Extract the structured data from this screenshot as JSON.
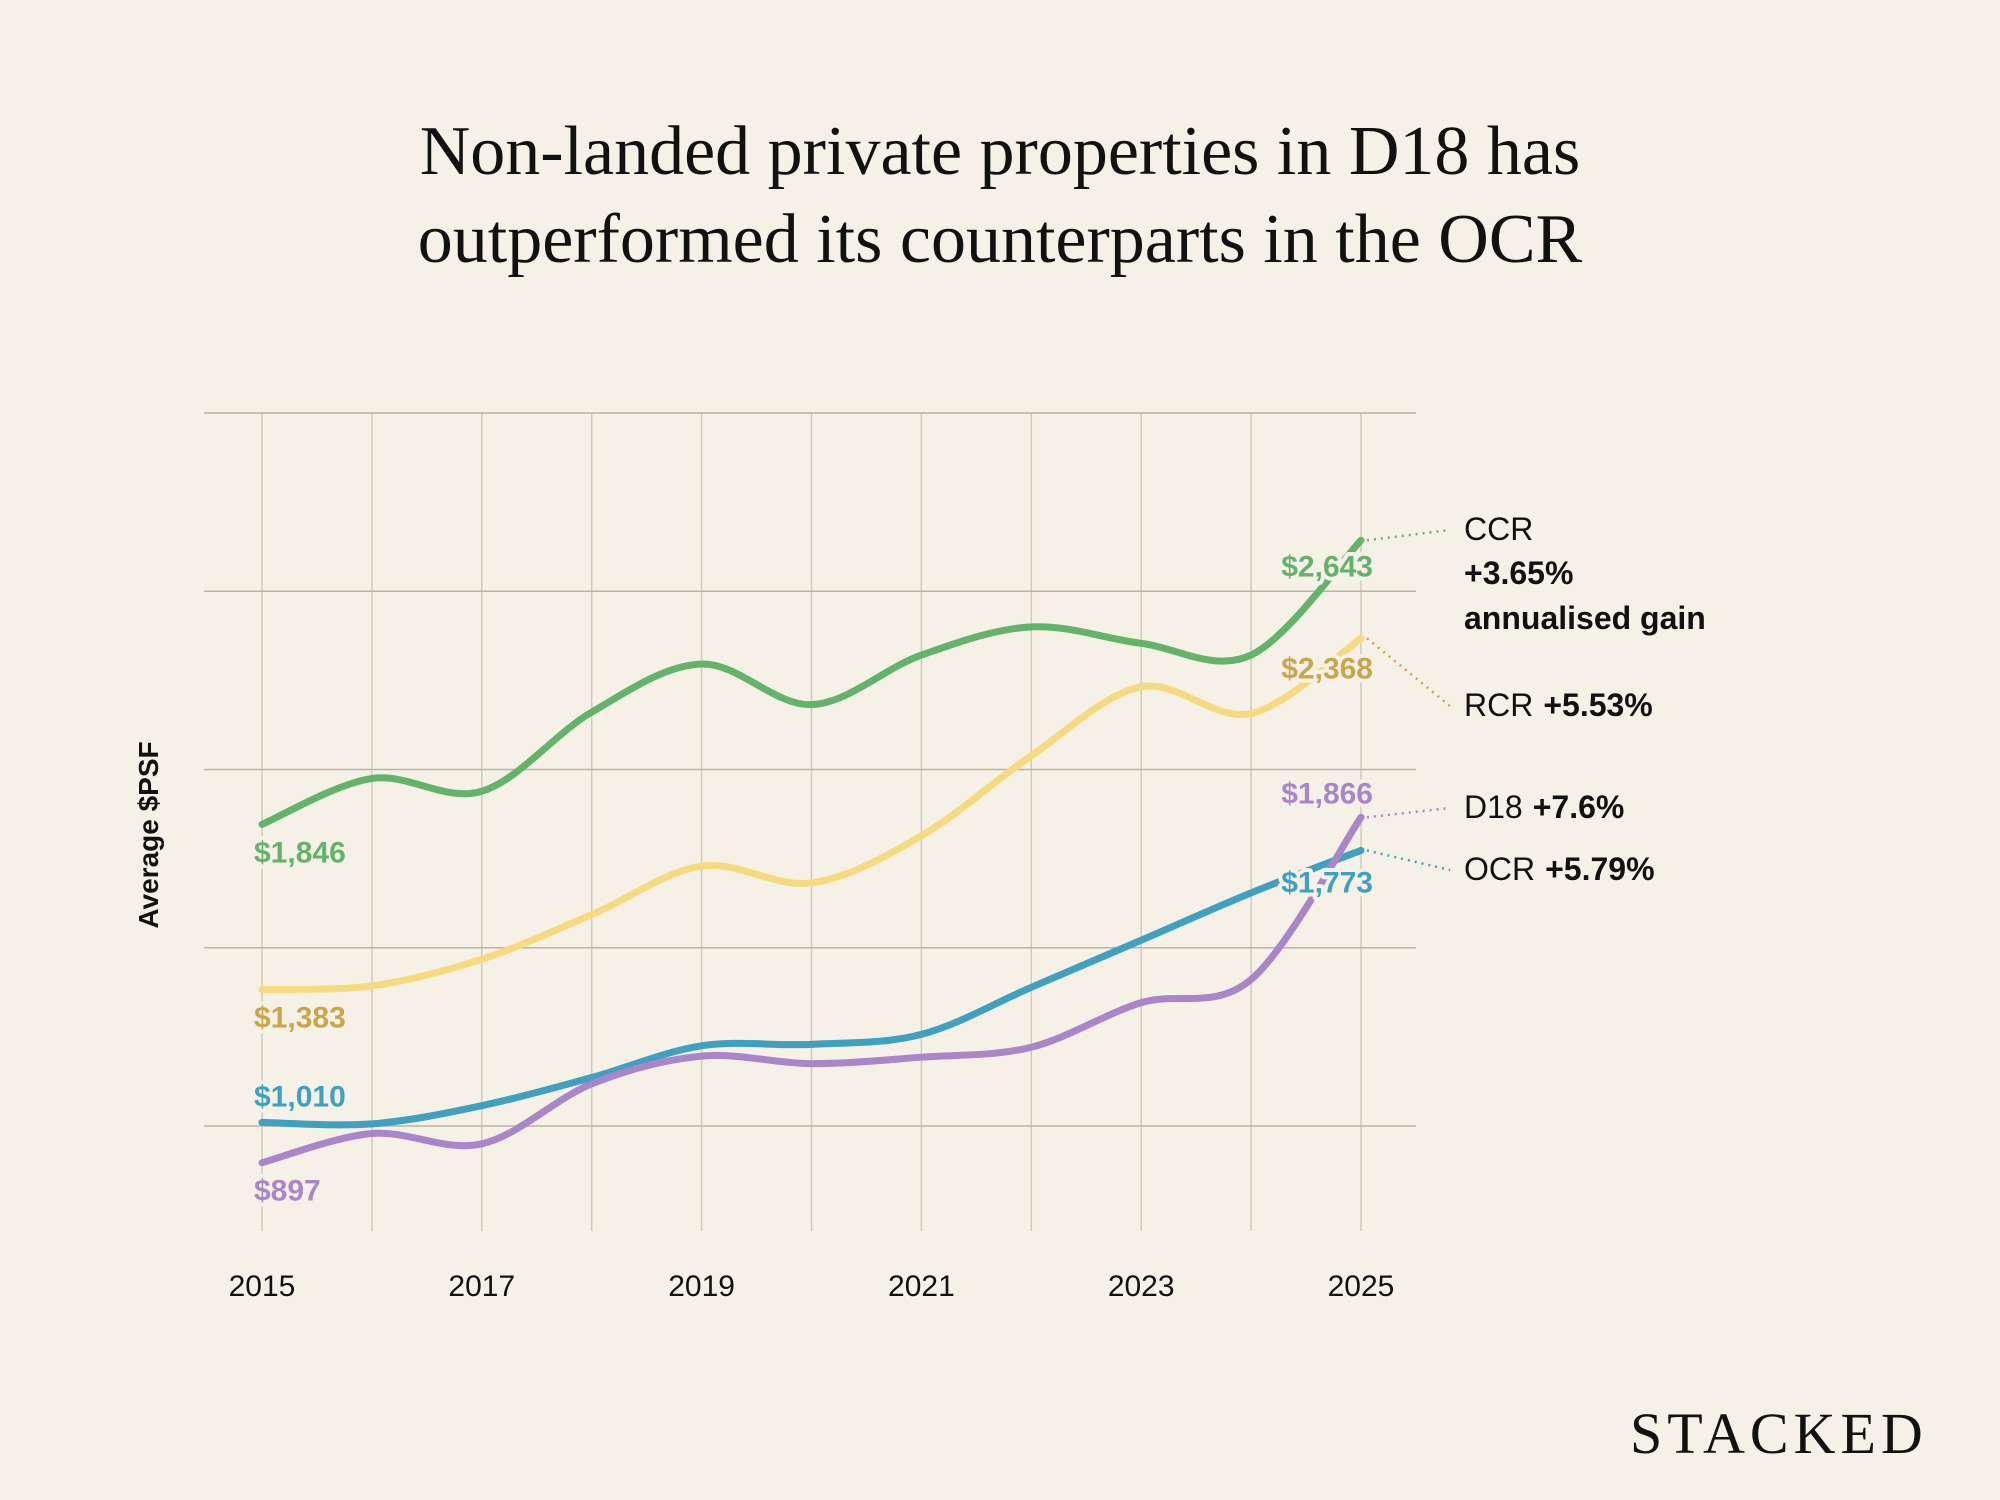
{
  "title": [
    "Non-landed private properties in D18 has",
    "outperformed its counterparts in the OCR"
  ],
  "logo": "STACKED",
  "chart_data": {
    "type": "line",
    "title": "Non-landed private properties in D18 has outperformed its counterparts in the OCR",
    "xlabel": "",
    "ylabel": "Average $PSF",
    "x": [
      2015,
      2016,
      2017,
      2018,
      2019,
      2020,
      2021,
      2022,
      2023,
      2024,
      2025
    ],
    "x_tick_labels": [
      "2015",
      "2017",
      "2019",
      "2021",
      "2023",
      "2025"
    ],
    "ylim": [
      700,
      3000
    ],
    "y_gridlines": [
      1000,
      1500,
      2000,
      2500,
      3000
    ],
    "grid": true,
    "legend": "direct labels at right",
    "series": [
      {
        "name": "CCR",
        "color": "#64b36b",
        "label_color": "#64b36b",
        "values": [
          1846,
          1975,
          1939,
          2161,
          2296,
          2182,
          2321,
          2400,
          2354,
          2321,
          2643
        ],
        "start_label": "$1,846",
        "end_label": "$2,643",
        "gain": "+3.65%",
        "gain_note": "annualised gain"
      },
      {
        "name": "RCR",
        "color": "#f6da80",
        "label_color": "#c9a64a",
        "values": [
          1383,
          1393,
          1468,
          1593,
          1729,
          1682,
          1814,
          2039,
          2232,
          2157,
          2368
        ],
        "start_label": "$1,383",
        "end_label": "$2,368",
        "gain": "+5.53%"
      },
      {
        "name": "D18",
        "color": "#a886c9",
        "label_color": "#a886c9",
        "values": [
          897,
          979,
          950,
          1118,
          1196,
          1175,
          1193,
          1221,
          1346,
          1411,
          1866
        ],
        "start_label": "$897",
        "end_label": "$1,866",
        "gain": "+7.6%"
      },
      {
        "name": "OCR",
        "color": "#3fa1bf",
        "label_color": "#3fa1bf",
        "values": [
          1010,
          1006,
          1057,
          1136,
          1225,
          1229,
          1257,
          1389,
          1521,
          1654,
          1773
        ],
        "start_label": "$1,010",
        "end_label": "$1,773",
        "gain": "+5.79%"
      }
    ]
  }
}
